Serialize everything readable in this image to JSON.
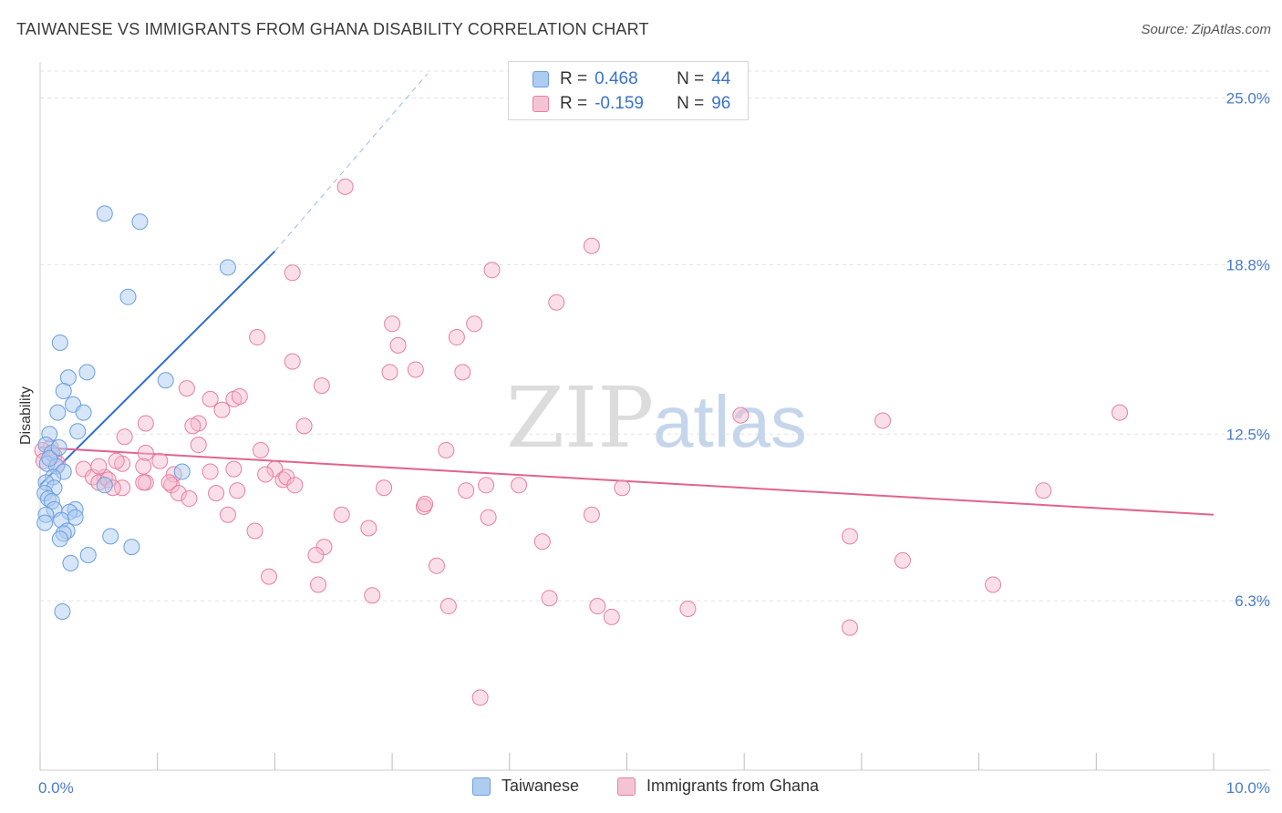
{
  "title": "TAIWANESE VS IMMIGRANTS FROM GHANA DISABILITY CORRELATION CHART",
  "source": "Source: ZipAtlas.com",
  "watermark": {
    "zip": "ZIP",
    "atlas": "atlas"
  },
  "legend": {
    "series1": {
      "r_label": "R =",
      "r_value": "0.468",
      "n_label": "N =",
      "n_value": "44"
    },
    "series2": {
      "r_label": "R =",
      "r_value": "-0.159",
      "n_label": "N =",
      "n_value": "96"
    }
  },
  "colors": {
    "blue": "#6a9fe0",
    "blue_fill": "#aecbf0",
    "blue_line": "#2f6fd1",
    "pink": "#e87fa3",
    "pink_fill": "#f5b9cd",
    "pink_line": "#e0648f",
    "accent_text": "#3a73c9"
  },
  "chart_data": {
    "type": "scatter",
    "title": "TAIWANESE VS IMMIGRANTS FROM GHANA DISABILITY CORRELATION CHART",
    "xlabel": "",
    "ylabel": "Disability",
    "xlim": [
      0,
      10
    ],
    "ylim": [
      0,
      26
    ],
    "x_tick_labels": [
      "0.0%",
      "10.0%"
    ],
    "y_ticks": [
      6.3,
      12.5,
      18.8,
      25.0
    ],
    "y_tick_labels": [
      "6.3%",
      "12.5%",
      "18.8%",
      "25.0%"
    ],
    "grid": true,
    "legend_position": "bottom",
    "series": [
      {
        "name": "Taiwanese",
        "color": "#6a9fe0",
        "trend": {
          "x": [
            0.0,
            2.0
          ],
          "y": [
            10.6,
            19.3
          ],
          "extend_to": [
            3.3,
            25.9
          ]
        },
        "points": [
          [
            0.55,
            20.7
          ],
          [
            0.85,
            20.4
          ],
          [
            1.6,
            18.7
          ],
          [
            0.75,
            17.6
          ],
          [
            0.17,
            15.9
          ],
          [
            0.4,
            14.8
          ],
          [
            0.24,
            14.6
          ],
          [
            1.07,
            14.5
          ],
          [
            0.2,
            14.1
          ],
          [
            0.28,
            13.6
          ],
          [
            0.15,
            13.3
          ],
          [
            0.37,
            13.3
          ],
          [
            0.32,
            12.6
          ],
          [
            0.08,
            12.5
          ],
          [
            0.05,
            12.1
          ],
          [
            0.1,
            11.8
          ],
          [
            0.06,
            11.4
          ],
          [
            0.14,
            11.3
          ],
          [
            0.2,
            11.1
          ],
          [
            1.21,
            11.1
          ],
          [
            0.11,
            10.9
          ],
          [
            0.05,
            10.7
          ],
          [
            0.55,
            10.6
          ],
          [
            0.12,
            10.5
          ],
          [
            0.04,
            10.3
          ],
          [
            0.07,
            10.1
          ],
          [
            0.1,
            10.0
          ],
          [
            0.3,
            9.7
          ],
          [
            0.12,
            9.7
          ],
          [
            0.25,
            9.6
          ],
          [
            0.05,
            9.5
          ],
          [
            0.3,
            9.4
          ],
          [
            0.18,
            9.3
          ],
          [
            0.04,
            9.2
          ],
          [
            0.23,
            8.9
          ],
          [
            0.2,
            8.8
          ],
          [
            0.6,
            8.7
          ],
          [
            0.17,
            8.6
          ],
          [
            0.78,
            8.3
          ],
          [
            0.41,
            8.0
          ],
          [
            0.26,
            7.7
          ],
          [
            0.19,
            5.9
          ],
          [
            0.08,
            11.6
          ],
          [
            0.16,
            12.0
          ]
        ]
      },
      {
        "name": "Immigrants from Ghana",
        "color": "#e87fa3",
        "trend": {
          "x": [
            0.0,
            10.0
          ],
          "y": [
            12.0,
            9.5
          ]
        },
        "points": [
          [
            2.6,
            21.7
          ],
          [
            4.7,
            19.5
          ],
          [
            2.15,
            18.5
          ],
          [
            3.85,
            18.6
          ],
          [
            4.4,
            17.4
          ],
          [
            3.0,
            16.6
          ],
          [
            3.7,
            16.6
          ],
          [
            1.85,
            16.1
          ],
          [
            3.55,
            16.1
          ],
          [
            3.05,
            15.8
          ],
          [
            2.15,
            15.2
          ],
          [
            3.2,
            14.9
          ],
          [
            2.98,
            14.8
          ],
          [
            3.6,
            14.8
          ],
          [
            2.4,
            14.3
          ],
          [
            1.25,
            14.2
          ],
          [
            1.45,
            13.8
          ],
          [
            1.65,
            13.8
          ],
          [
            1.7,
            13.9
          ],
          [
            1.55,
            13.4
          ],
          [
            5.97,
            13.2
          ],
          [
            7.18,
            13.0
          ],
          [
            9.2,
            13.3
          ],
          [
            1.35,
            12.9
          ],
          [
            2.25,
            12.8
          ],
          [
            0.9,
            12.9
          ],
          [
            1.3,
            12.8
          ],
          [
            0.72,
            12.4
          ],
          [
            1.35,
            12.1
          ],
          [
            0.09,
            12.0
          ],
          [
            0.02,
            11.9
          ],
          [
            0.12,
            11.7
          ],
          [
            0.03,
            11.5
          ],
          [
            0.15,
            11.4
          ],
          [
            0.9,
            11.8
          ],
          [
            3.46,
            11.9
          ],
          [
            1.88,
            11.9
          ],
          [
            1.02,
            11.5
          ],
          [
            0.7,
            11.4
          ],
          [
            0.88,
            11.3
          ],
          [
            1.65,
            11.2
          ],
          [
            2.0,
            11.2
          ],
          [
            0.65,
            11.5
          ],
          [
            0.55,
            10.9
          ],
          [
            1.92,
            11.0
          ],
          [
            0.37,
            11.2
          ],
          [
            0.45,
            10.9
          ],
          [
            0.5,
            10.7
          ],
          [
            0.58,
            10.8
          ],
          [
            1.14,
            11.0
          ],
          [
            1.45,
            11.1
          ],
          [
            2.07,
            10.8
          ],
          [
            2.1,
            10.9
          ],
          [
            0.7,
            10.5
          ],
          [
            0.9,
            10.7
          ],
          [
            1.12,
            10.6
          ],
          [
            1.1,
            10.7
          ],
          [
            2.17,
            10.6
          ],
          [
            2.93,
            10.5
          ],
          [
            3.8,
            10.6
          ],
          [
            4.08,
            10.6
          ],
          [
            4.96,
            10.5
          ],
          [
            0.88,
            10.7
          ],
          [
            1.18,
            10.3
          ],
          [
            1.68,
            10.4
          ],
          [
            3.63,
            10.4
          ],
          [
            0.62,
            10.5
          ],
          [
            1.27,
            10.1
          ],
          [
            3.27,
            9.8
          ],
          [
            3.28,
            9.9
          ],
          [
            8.55,
            10.4
          ],
          [
            1.6,
            9.5
          ],
          [
            2.57,
            9.5
          ],
          [
            3.82,
            9.4
          ],
          [
            4.7,
            9.5
          ],
          [
            1.83,
            8.9
          ],
          [
            2.8,
            9.0
          ],
          [
            6.9,
            8.7
          ],
          [
            4.28,
            8.5
          ],
          [
            2.42,
            8.3
          ],
          [
            2.35,
            8.0
          ],
          [
            3.38,
            7.6
          ],
          [
            7.35,
            7.8
          ],
          [
            1.95,
            7.2
          ],
          [
            2.37,
            6.9
          ],
          [
            2.83,
            6.5
          ],
          [
            3.48,
            6.1
          ],
          [
            4.34,
            6.4
          ],
          [
            4.75,
            6.1
          ],
          [
            4.87,
            5.7
          ],
          [
            5.52,
            6.0
          ],
          [
            6.9,
            5.3
          ],
          [
            8.12,
            6.9
          ],
          [
            3.75,
            2.7
          ],
          [
            1.5,
            10.3
          ],
          [
            0.5,
            11.3
          ]
        ]
      }
    ]
  },
  "bottom_legend": {
    "series1_label": "Taiwanese",
    "series2_label": "Immigrants from Ghana"
  }
}
